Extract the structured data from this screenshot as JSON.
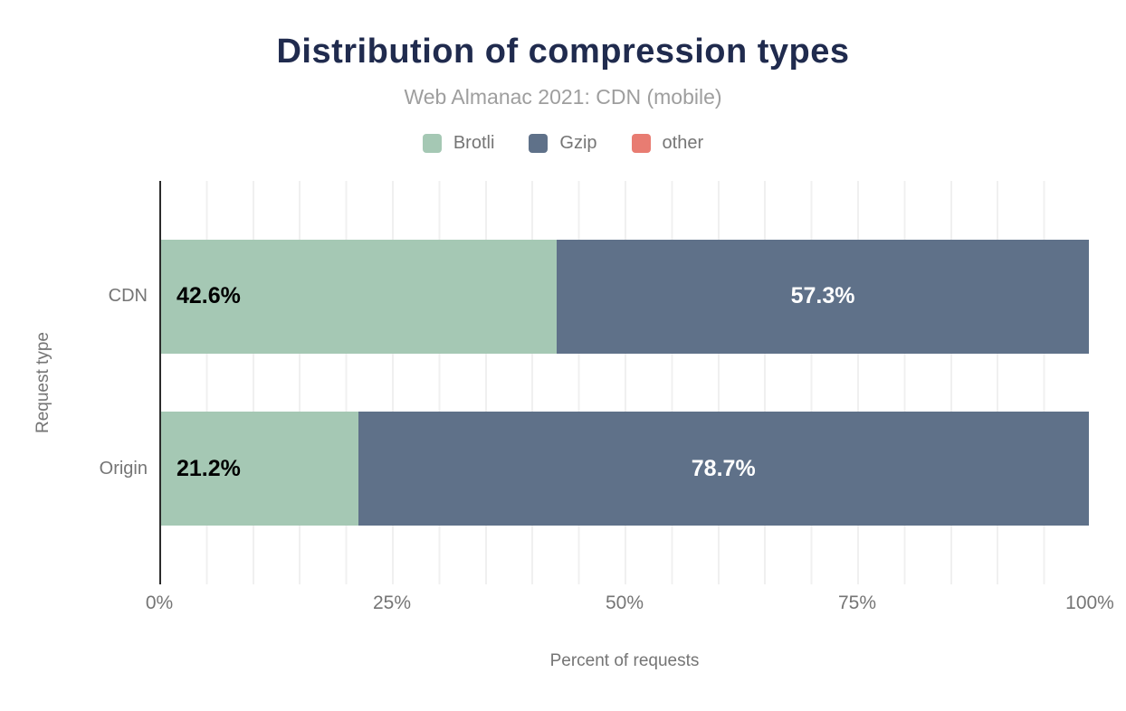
{
  "colors": {
    "background": "#ffffff",
    "title_text": "#202b4e",
    "subtitle_text": "#9e9e9e",
    "muted_text": "#757575",
    "axis_line": "#2b2b2b",
    "gridline": "#f0f0f0",
    "bar_label_dark": "#000000",
    "bar_label_light": "#ffffff"
  },
  "chart_data": {
    "type": "bar",
    "stacked": true,
    "orientation": "horizontal",
    "title": "Distribution of compression types",
    "subtitle": "Web Almanac 2021: CDN (mobile)",
    "categories": [
      "CDN",
      "Origin"
    ],
    "series": [
      {
        "name": "Brotli",
        "color": "#a5c8b4",
        "label_color": "#000000",
        "values": [
          42.6,
          21.2
        ],
        "labels": [
          "42.6%",
          "21.2%"
        ]
      },
      {
        "name": "Gzip",
        "color": "#5f7189",
        "label_color": "#ffffff",
        "values": [
          57.3,
          78.7
        ],
        "labels": [
          "57.3%",
          "78.7%"
        ]
      },
      {
        "name": "other",
        "color": "#e87c72",
        "label_color": "#000000",
        "values": [
          0,
          0
        ],
        "labels": [
          "",
          ""
        ]
      }
    ],
    "xlabel": "Percent of requests",
    "ylabel": "Request type",
    "x_ticks": [
      "0%",
      "25%",
      "50%",
      "75%",
      "100%"
    ],
    "x_tick_values": [
      0,
      25,
      50,
      75,
      100
    ],
    "xlim": [
      0,
      100
    ],
    "grid": "vertical gridlines every 5%",
    "legend_position": "top"
  }
}
